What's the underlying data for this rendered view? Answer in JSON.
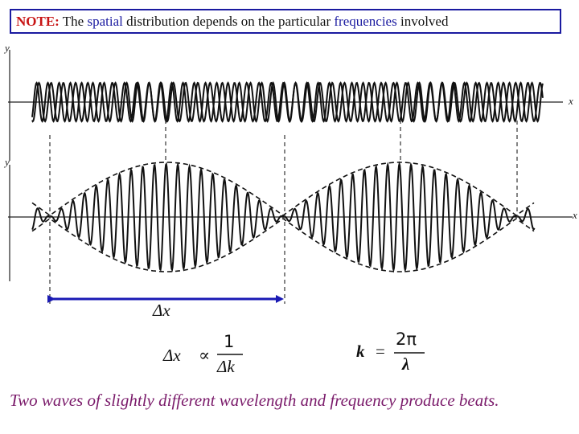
{
  "note": {
    "label": "NOTE:",
    "parts": [
      "The ",
      "spatial",
      " distribution depends on the particular ",
      "frequencies",
      " involved"
    ]
  },
  "axes": {
    "top_y": "y",
    "top_x": "x",
    "bottom_y": "y",
    "bottom_x": "x"
  },
  "delta_label": "Δx",
  "formula_left": {
    "lhs": "Δx",
    "relation": "∝",
    "numerator": "1",
    "denominator": "Δk"
  },
  "formula_right": {
    "lhs": "k",
    "equals": "=",
    "numerator": "2π",
    "denominator": "λ"
  },
  "caption": "Two waves of slightly different wavelength and frequency produce beats.",
  "colors": {
    "box_border": "#1a1aa0",
    "note_label": "#c81414",
    "highlight_blue": "#1a1aa0",
    "highlight_red": "#b01818",
    "arrow": "#1a1ab4",
    "caption": "#7a1a6a",
    "wave": "#111111"
  }
}
